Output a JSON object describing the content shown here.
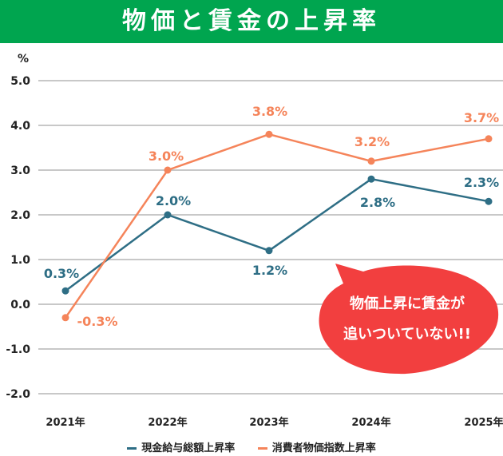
{
  "header": {
    "title": "物価と賃金の上昇率"
  },
  "callout": {
    "line1": "物価上昇に賃金が",
    "line2": "追いついていない!!",
    "color": "#f23f3f"
  },
  "chart_data": {
    "type": "line",
    "title": "物価と賃金の上昇率",
    "ylabel": "%",
    "categories": [
      "2021年",
      "2022年",
      "2023年",
      "2024年",
      "2025年"
    ],
    "ylim": [
      -2.0,
      5.0
    ],
    "yticks": [
      "5.0",
      "4.0",
      "3.0",
      "2.0",
      "1.0",
      "0.0",
      "-1.0",
      "-2.0"
    ],
    "grid": true,
    "legend": "bottom",
    "series": [
      {
        "name": "現金給与総額上昇率",
        "color": "#2e6e85",
        "values": [
          0.3,
          2.0,
          1.2,
          2.8,
          2.3
        ],
        "labels": [
          "0.3%",
          "2.0%",
          "1.2%",
          "2.8%",
          "2.3%"
        ]
      },
      {
        "name": "消費者物価指数上昇率",
        "color": "#f5845a",
        "values": [
          -0.3,
          3.0,
          3.8,
          3.2,
          3.7
        ],
        "labels": [
          "-0.3%",
          "3.0%",
          "3.8%",
          "3.2%",
          "3.7%"
        ]
      }
    ]
  }
}
